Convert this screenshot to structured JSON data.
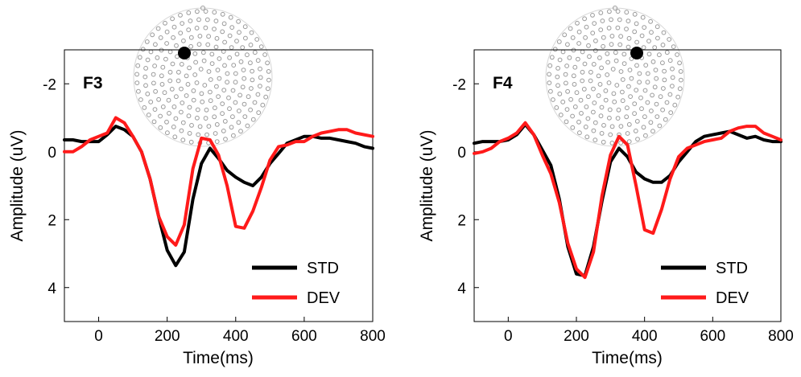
{
  "figure": {
    "xlabel": "Time(ms)",
    "ylabel": "Amplitude (uV)"
  },
  "colors": {
    "STD": "#000000",
    "DEV": "#ff1a1a",
    "electrode_dot": "#9a9a9a",
    "highlight_electrode": "#000000"
  },
  "chart_data": [
    {
      "type": "line",
      "panel_label": "F3",
      "xlabel": "Time(ms)",
      "ylabel": "Amplitude (uV)",
      "xlim": [
        -100,
        800
      ],
      "ylim": [
        -3,
        5
      ],
      "y_reversed": true,
      "xticks": [
        "0",
        "200",
        "400",
        "600",
        "800"
      ],
      "yticks": [
        "-2",
        "0",
        "2",
        "4"
      ],
      "grid": false,
      "legend": "bottom-right",
      "x": [
        -100,
        -75,
        -50,
        -25,
        0,
        25,
        50,
        75,
        100,
        125,
        150,
        175,
        200,
        225,
        250,
        275,
        300,
        325,
        350,
        375,
        400,
        425,
        450,
        475,
        500,
        525,
        550,
        575,
        600,
        625,
        650,
        675,
        700,
        725,
        750,
        775,
        800
      ],
      "series": [
        {
          "name": "STD",
          "values": [
            -0.35,
            -0.35,
            -0.3,
            -0.3,
            -0.3,
            -0.5,
            -0.75,
            -0.65,
            -0.45,
            0.0,
            0.8,
            1.9,
            2.9,
            3.35,
            2.95,
            1.4,
            0.35,
            -0.1,
            0.2,
            0.55,
            0.75,
            0.9,
            1.0,
            0.75,
            0.35,
            0.05,
            -0.25,
            -0.35,
            -0.45,
            -0.45,
            -0.4,
            -0.4,
            -0.35,
            -0.3,
            -0.25,
            -0.15,
            -0.1
          ]
        },
        {
          "name": "DEV",
          "values": [
            0.0,
            0.0,
            -0.15,
            -0.35,
            -0.45,
            -0.55,
            -1.0,
            -0.85,
            -0.45,
            0.0,
            0.8,
            1.9,
            2.5,
            2.75,
            2.15,
            0.5,
            -0.4,
            -0.35,
            0.1,
            1.0,
            2.2,
            2.25,
            1.75,
            1.05,
            0.25,
            -0.15,
            -0.2,
            -0.3,
            -0.3,
            -0.45,
            -0.55,
            -0.6,
            -0.65,
            -0.65,
            -0.55,
            -0.5,
            -0.45
          ]
        }
      ]
    },
    {
      "type": "line",
      "panel_label": "F4",
      "xlabel": "Time(ms)",
      "ylabel": "Amplitude (uV)",
      "xlim": [
        -100,
        800
      ],
      "ylim": [
        -3,
        5
      ],
      "y_reversed": true,
      "xticks": [
        "0",
        "200",
        "400",
        "600",
        "800"
      ],
      "yticks": [
        "-2",
        "0",
        "2",
        "4"
      ],
      "grid": false,
      "legend": "bottom-right",
      "x": [
        -100,
        -75,
        -50,
        -25,
        0,
        25,
        50,
        75,
        100,
        125,
        150,
        175,
        200,
        225,
        250,
        275,
        300,
        325,
        350,
        375,
        400,
        425,
        450,
        475,
        500,
        525,
        550,
        575,
        600,
        625,
        650,
        675,
        700,
        725,
        750,
        775,
        800
      ],
      "series": [
        {
          "name": "STD",
          "values": [
            -0.25,
            -0.3,
            -0.3,
            -0.3,
            -0.35,
            -0.5,
            -0.8,
            -0.5,
            -0.05,
            0.4,
            1.4,
            2.8,
            3.6,
            3.65,
            2.8,
            1.45,
            0.3,
            -0.1,
            0.15,
            0.6,
            0.8,
            0.9,
            0.9,
            0.7,
            0.3,
            0.0,
            -0.3,
            -0.45,
            -0.5,
            -0.55,
            -0.6,
            -0.5,
            -0.4,
            -0.45,
            -0.35,
            -0.3,
            -0.3
          ]
        },
        {
          "name": "DEV",
          "values": [
            0.05,
            0.0,
            -0.1,
            -0.3,
            -0.4,
            -0.55,
            -0.85,
            -0.5,
            0.1,
            0.65,
            1.5,
            2.7,
            3.45,
            3.7,
            2.95,
            1.3,
            0.1,
            -0.45,
            -0.2,
            1.0,
            2.3,
            2.4,
            1.7,
            0.8,
            0.15,
            -0.1,
            -0.2,
            -0.3,
            -0.35,
            -0.4,
            -0.6,
            -0.7,
            -0.75,
            -0.75,
            -0.55,
            -0.45,
            -0.35
          ]
        }
      ]
    }
  ]
}
